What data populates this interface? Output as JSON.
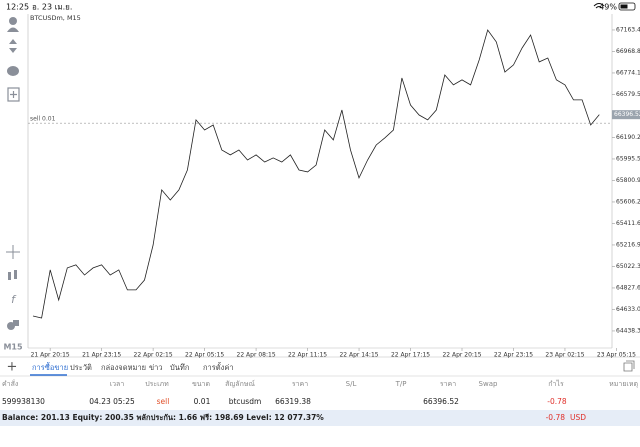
{
  "status_bar": {
    "time": "12:25",
    "date": "อ. 23 เม.ย.",
    "battery": "49%"
  },
  "toolbar": {
    "timeframe": "M15"
  },
  "chart_data": {
    "type": "line",
    "title": "BTCUSDm, M15",
    "categories": [
      null,
      null,
      "21 Apr 20:15",
      null,
      null,
      null,
      null,
      null,
      "21 Apr 23:15",
      null,
      null,
      null,
      null,
      null,
      "22 Apr 02:15",
      null,
      null,
      null,
      null,
      null,
      "22 Apr 05:15",
      null,
      null,
      null,
      null,
      null,
      "22 Apr 08:15",
      null,
      null,
      null,
      null,
      null,
      "22 Apr 11:15",
      null,
      null,
      null,
      null,
      null,
      "22 Apr 14:15",
      null,
      null,
      null,
      null,
      null,
      "22 Apr 17:15",
      null,
      null,
      null,
      null,
      null,
      "22 Apr 20:15",
      null,
      null,
      null,
      null,
      null,
      "22 Apr 23:15",
      null,
      null,
      null,
      null,
      null,
      "23 Apr 02:15",
      null,
      null,
      null,
      null,
      null,
      "23 Apr 05:15"
    ],
    "values": [
      64574,
      64556,
      64991,
      64719,
      65009,
      65036,
      64945,
      65009,
      65036,
      64945,
      64991,
      64810,
      64810,
      64900,
      65217,
      65715,
      65624,
      65715,
      65896,
      66349,
      66258,
      66303,
      66077,
      66032,
      66077,
      65986,
      66032,
      65968,
      66005,
      65968,
      66032,
      65896,
      65878,
      65941,
      66258,
      66168,
      66439,
      66077,
      65824,
      65986,
      66122,
      66186,
      66258,
      66729,
      66484,
      66394,
      66349,
      66439,
      66756,
      66666,
      66711,
      66666,
      66892,
      67163,
      67055,
      66783,
      66847,
      67000,
      67118,
      66874,
      66910,
      66711,
      66666,
      66530,
      66530,
      66303,
      66397,
      null,
      null
    ],
    "color": "#222222",
    "ylim": [
      64284,
      67308
    ],
    "yticks": [
      67163.45,
      {
        "value": 66968.8,
        "label": "66968.80"
      },
      66774.15,
      {
        "value": 66579.5,
        "label": "66579.50"
      },
      66384.85,
      {
        "value": 66190.2,
        "label": "66190.20"
      },
      65995.55,
      {
        "value": 65800.9,
        "label": "65800.90"
      },
      65606.25,
      {
        "value": 65411.6,
        "label": "65411.60"
      },
      65216.95,
      {
        "value": 65022.3,
        "label": "65022.30"
      },
      64827.65,
      {
        "value": 64633,
        "label": "64633.00"
      },
      64438.35
    ],
    "order_line": {
      "label": "sell 0.01",
      "price": 66319.38
    },
    "current_price": 66396.52
  },
  "tabs": [
    "การซื้อขาย",
    "ประวัติ",
    "กล่องจดหมาย",
    "ข่าว",
    "บันทึก",
    "การตั้งค่า"
  ],
  "table": {
    "headers": [
      "คำสั่ง",
      "เวลา",
      "ประเภท",
      "ขนาด",
      "สัญลักษณ์",
      "ราคา",
      "S/L",
      "T/P",
      "ราคา",
      "Swap",
      "กำไร",
      "หมายเหตุ"
    ],
    "row": {
      "ticket": "599938130",
      "time": "04.23 05:25",
      "type": "sell",
      "volume": "0.01",
      "symbol": "btcusdm",
      "price_open": "66319.38",
      "price_current": "66396.52",
      "profit": "-0.78"
    }
  },
  "footer": {
    "summary": "Balance: 201.13 Equity: 200.35 พลักประกัน: 1.66 ฟรี: 198.69 Level: 12 077.37%",
    "profit": "-0.78",
    "currency": "USD"
  }
}
